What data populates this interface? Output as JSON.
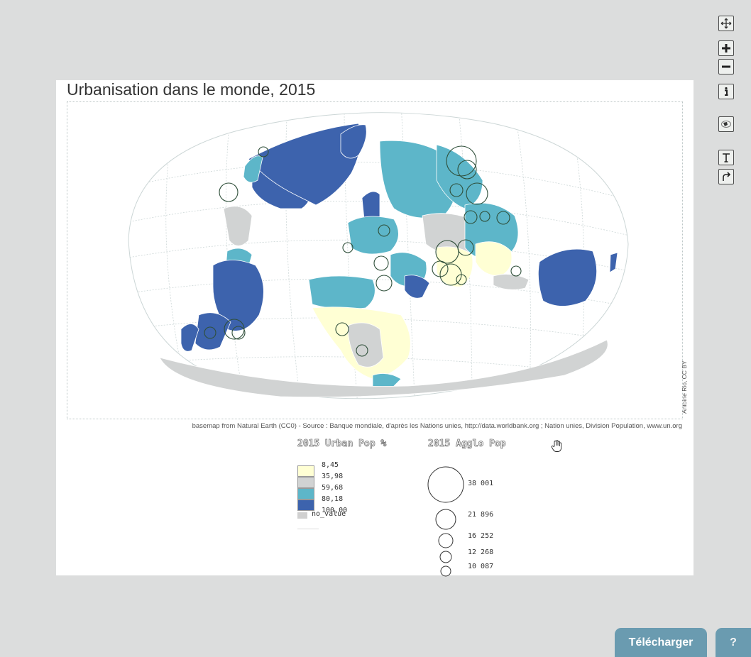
{
  "map": {
    "title": "Urbanisation dans le monde, 2015",
    "source": "basemap from Natural Earth (CC0) - Source : Banque mondiale, d'après les Nations unies, http://data.worldbank.org ; Nation unies, Division Population, www.un.org",
    "credit": "Antoine Rio, CC BY"
  },
  "legend_choropleth": {
    "title": "2015 Urban Pop %",
    "breaks": [
      "8,45",
      "35,98",
      "59,68",
      "80,18",
      "100,00"
    ],
    "classes": [
      {
        "color": "#ffffd4"
      },
      {
        "color": "#d1d3d3"
      },
      {
        "color": "#5db6c9"
      },
      {
        "color": "#3d63ad"
      }
    ],
    "no_value": {
      "label": "no_value",
      "color": "#d0d0d0"
    }
  },
  "legend_circles": {
    "title": "2015 Agglo Pop",
    "values": [
      "38 001",
      "21 896",
      "16 252",
      "12 268",
      "10 087"
    ]
  },
  "colors": {
    "water": "#ffffff",
    "graticule": "#cdd7d7",
    "cls1": "#ffffd4",
    "cls2": "#d1d3d3",
    "cls3": "#5db6c9",
    "cls4": "#3d63ad",
    "circle_stroke": "#2f4f3a"
  },
  "toolbar": {
    "icons": [
      "move-icon",
      "zoom-in-icon",
      "zoom-out-icon",
      "info-icon",
      "projection-icon",
      "text-tool-icon",
      "arrow-tool-icon"
    ]
  },
  "footer": {
    "download_label": "Télécharger",
    "help_label": "?"
  }
}
